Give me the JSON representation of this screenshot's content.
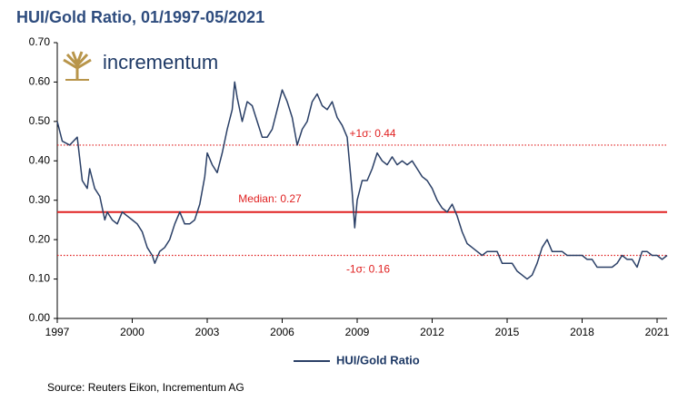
{
  "chart_data": {
    "type": "line",
    "title": "HUI/Gold Ratio, 01/1997-05/2021",
    "logo": "incrementum",
    "source": "Source: Reuters Eikon, Incrementum AG",
    "legend": "bottom",
    "grid": false,
    "x": [
      1997.0,
      1997.2,
      1997.5,
      1997.8,
      1998.0,
      1998.2,
      1998.3,
      1998.5,
      1998.7,
      1998.9,
      1999.0,
      1999.2,
      1999.4,
      1999.6,
      1999.8,
      2000.0,
      2000.2,
      2000.4,
      2000.6,
      2000.8,
      2000.9,
      2001.1,
      2001.3,
      2001.5,
      2001.7,
      2001.9,
      2002.1,
      2002.3,
      2002.5,
      2002.7,
      2002.9,
      2003.0,
      2003.2,
      2003.4,
      2003.6,
      2003.8,
      2004.0,
      2004.1,
      2004.2,
      2004.4,
      2004.6,
      2004.8,
      2005.0,
      2005.2,
      2005.4,
      2005.6,
      2005.8,
      2006.0,
      2006.2,
      2006.4,
      2006.6,
      2006.8,
      2007.0,
      2007.2,
      2007.4,
      2007.6,
      2007.8,
      2008.0,
      2008.2,
      2008.4,
      2008.6,
      2008.8,
      2008.9,
      2009.0,
      2009.2,
      2009.4,
      2009.6,
      2009.8,
      2010.0,
      2010.2,
      2010.4,
      2010.6,
      2010.8,
      2011.0,
      2011.2,
      2011.4,
      2011.6,
      2011.8,
      2012.0,
      2012.2,
      2012.4,
      2012.6,
      2012.8,
      2013.0,
      2013.2,
      2013.4,
      2013.6,
      2013.8,
      2014.0,
      2014.2,
      2014.4,
      2014.6,
      2014.8,
      2015.0,
      2015.2,
      2015.4,
      2015.6,
      2015.8,
      2016.0,
      2016.2,
      2016.4,
      2016.6,
      2016.8,
      2017.0,
      2017.2,
      2017.4,
      2017.6,
      2017.8,
      2018.0,
      2018.2,
      2018.4,
      2018.6,
      2018.8,
      2019.0,
      2019.2,
      2019.4,
      2019.6,
      2019.8,
      2020.0,
      2020.2,
      2020.4,
      2020.6,
      2020.8,
      2021.0,
      2021.2,
      2021.4
    ],
    "series": [
      {
        "name": "HUI/Gold Ratio",
        "color": "#2a3f66",
        "values": [
          0.5,
          0.45,
          0.44,
          0.46,
          0.35,
          0.33,
          0.38,
          0.33,
          0.31,
          0.25,
          0.27,
          0.25,
          0.24,
          0.27,
          0.26,
          0.25,
          0.24,
          0.22,
          0.18,
          0.16,
          0.14,
          0.17,
          0.18,
          0.2,
          0.24,
          0.27,
          0.24,
          0.24,
          0.25,
          0.29,
          0.36,
          0.42,
          0.39,
          0.37,
          0.42,
          0.48,
          0.53,
          0.6,
          0.56,
          0.5,
          0.55,
          0.54,
          0.5,
          0.46,
          0.46,
          0.48,
          0.53,
          0.58,
          0.55,
          0.51,
          0.44,
          0.48,
          0.5,
          0.55,
          0.57,
          0.54,
          0.53,
          0.55,
          0.51,
          0.49,
          0.46,
          0.32,
          0.23,
          0.3,
          0.35,
          0.35,
          0.38,
          0.42,
          0.4,
          0.39,
          0.41,
          0.39,
          0.4,
          0.39,
          0.4,
          0.38,
          0.36,
          0.35,
          0.33,
          0.3,
          0.28,
          0.27,
          0.29,
          0.26,
          0.22,
          0.19,
          0.18,
          0.17,
          0.16,
          0.17,
          0.17,
          0.17,
          0.14,
          0.14,
          0.14,
          0.12,
          0.11,
          0.1,
          0.11,
          0.14,
          0.18,
          0.2,
          0.17,
          0.17,
          0.17,
          0.16,
          0.16,
          0.16,
          0.16,
          0.15,
          0.15,
          0.13,
          0.13,
          0.13,
          0.13,
          0.14,
          0.16,
          0.15,
          0.15,
          0.13,
          0.17,
          0.17,
          0.16,
          0.16,
          0.15,
          0.16
        ]
      }
    ],
    "reference_lines": [
      {
        "value": 0.44,
        "label": "+1σ: 0.44",
        "style": "dotted",
        "color": "#e02020"
      },
      {
        "value": 0.27,
        "label": "Median: 0.27",
        "style": "solid",
        "color": "#e02020"
      },
      {
        "value": 0.16,
        "label": "-1σ: 0.16",
        "style": "dotted",
        "color": "#e02020"
      }
    ],
    "xlim": [
      1997,
      2021.4
    ],
    "xticks": [
      1997,
      2000,
      2003,
      2006,
      2009,
      2012,
      2015,
      2018,
      2021
    ],
    "ylim": [
      0,
      0.7
    ],
    "yticks": [
      {
        "value": 0,
        "label": "0.00"
      },
      {
        "value": 0.1,
        "label": "0.10"
      },
      {
        "value": 0.2,
        "label": "0.20"
      },
      {
        "value": 0.3,
        "label": "0.30"
      },
      {
        "value": 0.4,
        "label": "0.40"
      },
      {
        "value": 0.5,
        "label": "0.50"
      },
      {
        "value": 0.6,
        "label": "0.60"
      },
      {
        "value": 0.7,
        "label": "0.70"
      }
    ]
  }
}
